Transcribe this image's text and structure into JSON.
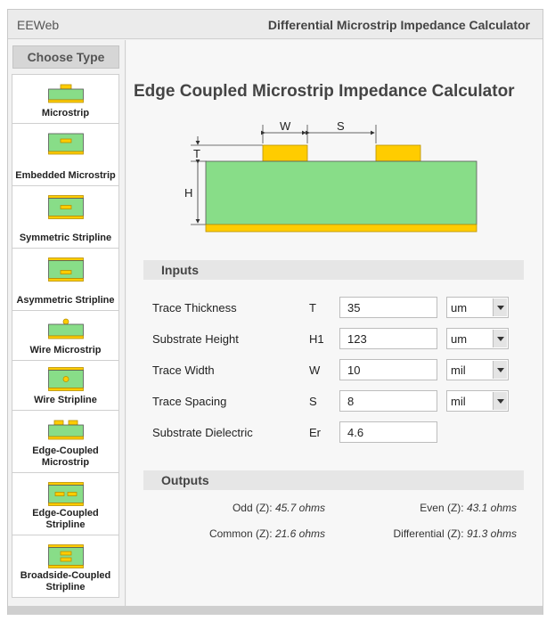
{
  "header": {
    "brand": "EEWeb",
    "title": "Differential Microstrip Impedance Calculator"
  },
  "sidebar": {
    "heading": "Choose Type",
    "items": [
      {
        "label": "Microstrip",
        "icon": "microstrip-icon"
      },
      {
        "label": "Embedded Microstrip",
        "icon": "embedded-microstrip-icon"
      },
      {
        "label": "Symmetric Stripline",
        "icon": "symmetric-stripline-icon"
      },
      {
        "label": "Asymmetric Stripline",
        "icon": "asymmetric-stripline-icon"
      },
      {
        "label": "Wire Microstrip",
        "icon": "wire-microstrip-icon"
      },
      {
        "label": "Wire Stripline",
        "icon": "wire-stripline-icon"
      },
      {
        "label": "Edge-Coupled Microstrip",
        "icon": "edge-coupled-microstrip-icon"
      },
      {
        "label": "Edge-Coupled Stripline",
        "icon": "edge-coupled-stripline-icon"
      },
      {
        "label": "Broadside-Coupled Stripline",
        "icon": "broadside-coupled-stripline-icon"
      }
    ]
  },
  "main": {
    "title": "Edge Coupled Microstrip Impedance Calculator",
    "diagram": {
      "w": "W",
      "s": "S",
      "t": "T",
      "h": "H"
    },
    "inputs_heading": "Inputs",
    "inputs": [
      {
        "name": "Trace Thickness",
        "symbol": "T",
        "value": "35",
        "unit": "um"
      },
      {
        "name": "Substrate Height",
        "symbol": "H1",
        "value": "123",
        "unit": "um"
      },
      {
        "name": "Trace Width",
        "symbol": "W",
        "value": "10",
        "unit": "mil"
      },
      {
        "name": "Trace Spacing",
        "symbol": "S",
        "value": "8",
        "unit": "mil"
      },
      {
        "name": "Substrate Dielectric",
        "symbol": "Er",
        "value": "4.6"
      }
    ],
    "outputs_heading": "Outputs",
    "outputs": {
      "odd_label": "Odd (Z): ",
      "odd_value": "45.7 ohms",
      "even_label": "Even (Z): ",
      "even_value": "43.1 ohms",
      "common_label": "Common (Z): ",
      "common_value": "21.6 ohms",
      "differential_label": "Differential (Z): ",
      "differential_value": "91.3 ohms"
    }
  },
  "colors": {
    "substrate": "#88dd88",
    "copper": "#ffcc00",
    "copper_border": "#b89000",
    "substrate_border": "#555555"
  }
}
